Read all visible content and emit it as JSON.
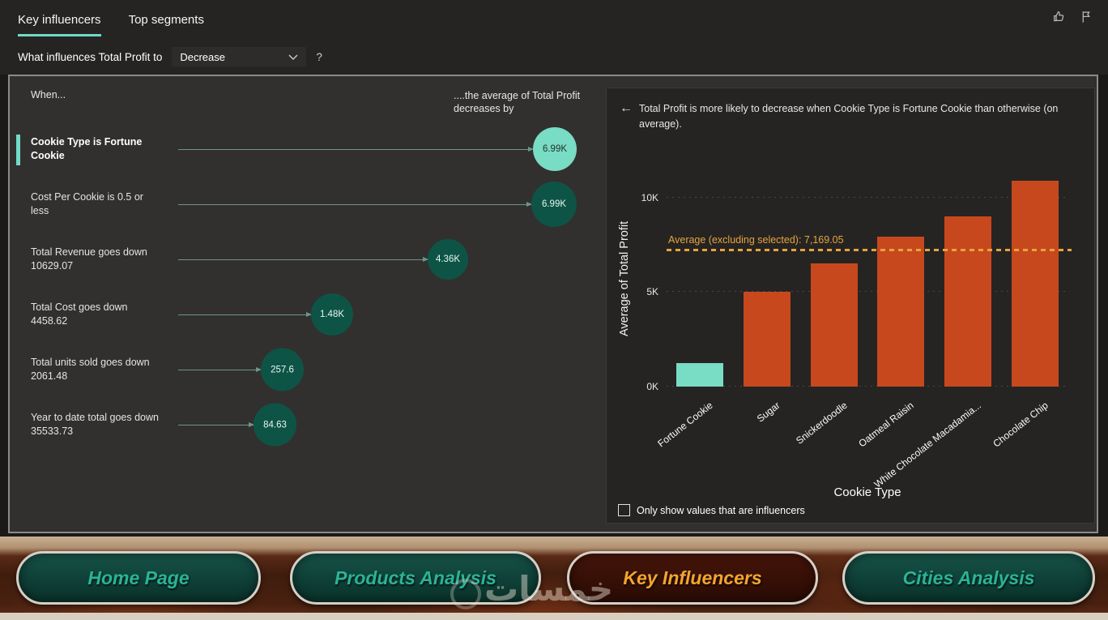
{
  "header": {
    "tabs": [
      {
        "label": "Key influencers",
        "active": true
      },
      {
        "label": "Top segments",
        "active": false
      }
    ],
    "icons": [
      "thumbs-up-icon",
      "pennant-icon"
    ],
    "question_prefix": "What influences Total Profit to",
    "dropdown_value": "Decrease",
    "help": "?"
  },
  "left_panel": {
    "when_label": "When...",
    "effect_label": "....the average of Total Profit decreases by",
    "influencers": [
      {
        "label": "Cookie Type is Fortune Cookie",
        "value": "6.99K",
        "selected": true
      },
      {
        "label": "Cost Per Cookie is 0.5 or less",
        "value": "6.99K",
        "selected": false
      },
      {
        "label": "Total Revenue goes down 10629.07",
        "value": "4.36K",
        "selected": false
      },
      {
        "label": "Total Cost goes down 4458.62",
        "value": "1.48K",
        "selected": false
      },
      {
        "label": "Total units sold goes down 2061.48",
        "value": "257.6",
        "selected": false
      },
      {
        "label": "Year to date total goes down 35533.73",
        "value": "84.63",
        "selected": false
      }
    ]
  },
  "right_panel": {
    "back_arrow": "←",
    "description": "Total Profit is more likely to decrease when Cookie Type is Fortune Cookie than otherwise (on average).",
    "checkbox_label": "Only show values that are influencers",
    "checkbox_checked": false
  },
  "chart_data": {
    "type": "bar",
    "categories": [
      "Fortune Cookie",
      "Sugar",
      "Snickerdoodle",
      "Oatmeal Raisin",
      "White Chocolate Macadamia...",
      "Chocolate Chip"
    ],
    "values": [
      1250,
      5000,
      6500,
      7950,
      9000,
      10900
    ],
    "bar_colors": [
      "#79dcc4",
      "#c7481d",
      "#c7481d",
      "#c7481d",
      "#c7481d",
      "#c7481d"
    ],
    "title": "",
    "xlabel": "Cookie Type",
    "ylabel": "Average of Total Profit",
    "ylim": [
      0,
      11400
    ],
    "yticks": [
      {
        "label": "0K",
        "value": 0
      },
      {
        "label": "5K",
        "value": 5000
      },
      {
        "label": "10K",
        "value": 10000
      }
    ],
    "average_line": {
      "label": "Average (excluding selected): 7,169.05",
      "value": 7169.05,
      "color": "#e8a33d"
    },
    "grid": true,
    "legend": null
  },
  "footer": {
    "buttons": [
      {
        "label": "Home Page",
        "active": false
      },
      {
        "label": "Products Analysis",
        "active": false
      },
      {
        "label": "Key Influencers",
        "active": true
      },
      {
        "label": "Cities Analysis",
        "active": false
      }
    ],
    "watermark": "خمسات"
  },
  "colors": {
    "accent_teal": "#71dbc8",
    "bubble_dark_green": "#0d5447",
    "bar_orange": "#c7481d",
    "average_line_orange": "#e8a33d",
    "nav_text_teal": "#2bb397",
    "nav_text_orange": "#f4a52f"
  }
}
